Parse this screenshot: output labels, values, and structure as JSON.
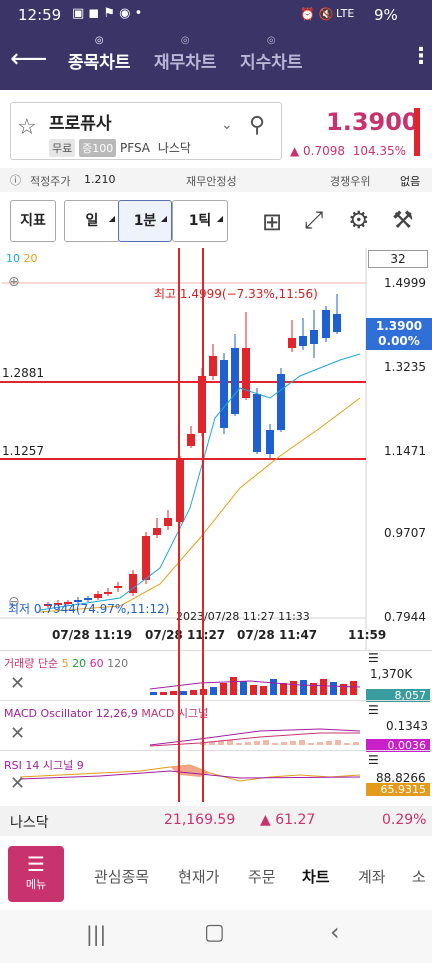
{
  "status": {
    "time": "12:59",
    "lte": "LTE",
    "battery": "9%"
  },
  "appbar": {
    "tabs": [
      "종목차트",
      "재무차트",
      "지수차트"
    ]
  },
  "stock": {
    "name": "프로퓨사",
    "badge_free": "무료",
    "badge_margin": "증100",
    "ticker": "PFSA",
    "market": "나스닥",
    "price": "1.3900",
    "change": "0.7098",
    "change_pct": "104.35%"
  },
  "info_row": {
    "fair_label": "적정주가",
    "fair_value": "1.210",
    "finance_label": "재무안정성",
    "rank_label": "경쟁우위",
    "rank_value": "없음"
  },
  "toolbar": {
    "indicator": "지표",
    "day": "일",
    "minute": "1분",
    "tick": "1틱",
    "count": "32"
  },
  "chart": {
    "ma_labels": [
      "10",
      "20"
    ],
    "high_label": "최고 1.4999(−7.33%,11:56)",
    "low_label": "최저 0.7944(74.97%,11:12)",
    "overlap_date": "2023/07/28 11:27 11:33",
    "y_ticks": [
      "1.4999",
      "1.3235",
      "1.1471",
      "0.9707",
      "0.7944"
    ],
    "price_box": "1.3900",
    "price_box_pct": "0.00%",
    "hline_labels": [
      "1.2881",
      "1.1257"
    ],
    "x_ticks": [
      "07/28 11:19",
      "07/28 11:27",
      "07/28 11:47",
      "11:59"
    ]
  },
  "volume": {
    "label": "거래량 단순",
    "ma": [
      "5",
      "20",
      "60",
      "120"
    ],
    "top": "1,370K",
    "value": "8,057"
  },
  "macd": {
    "label": "MACD Oscillator 12,26,9",
    "label2": "MACD 시그널",
    "top": "0.1343",
    "value": "0.0036"
  },
  "rsi": {
    "label": "RSI 14 시그널 9",
    "top": "88.8266",
    "value": "65.9315"
  },
  "nasdaq": {
    "label": "나스닥",
    "value": "21,169.59",
    "change": "61.27",
    "pct": "0.29%"
  },
  "nav": {
    "menu": "메뉴",
    "items": [
      "관심종목",
      "현재가",
      "주문",
      "차트",
      "계좌",
      "소"
    ]
  },
  "colors": {
    "header": "#3a3566",
    "up": "#e0252d",
    "down": "#1f5fd1",
    "accent": "#c8336e"
  }
}
